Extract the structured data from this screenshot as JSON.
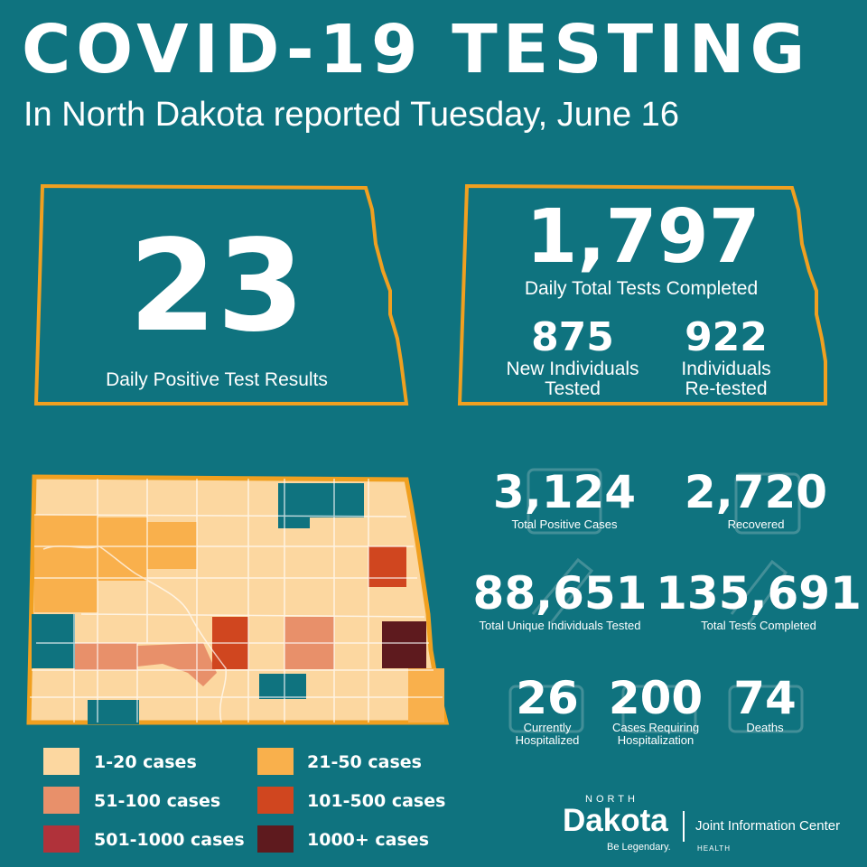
{
  "header": {
    "title": "COVID-19 TESTING",
    "subtitle": "In North Dakota reported Tuesday, June 16"
  },
  "daily_positive": {
    "value": "23",
    "label": "Daily Positive Test Results"
  },
  "daily_tests": {
    "value": "1,797",
    "label": "Daily Total Tests Completed",
    "new_individuals": {
      "value": "875",
      "label_line1": "New Individuals",
      "label_line2": "Tested"
    },
    "retested": {
      "value": "922",
      "label_line1": "Individuals",
      "label_line2": "Re-tested"
    }
  },
  "stats": {
    "total_positive": {
      "value": "3,124",
      "label": "Total Positive Cases"
    },
    "recovered": {
      "value": "2,720",
      "label": "Recovered"
    },
    "unique_tested": {
      "value": "88,651",
      "label": "Total Unique Individuals Tested"
    },
    "total_tests": {
      "value": "135,691",
      "label": "Total Tests Completed"
    },
    "hospitalized": {
      "value": "26",
      "label_line1": "Currently",
      "label_line2": "Hospitalized"
    },
    "cases_hosp": {
      "value": "200",
      "label_line1": "Cases Requiring",
      "label_line2": "Hospitalization"
    },
    "deaths": {
      "value": "74",
      "label": "Deaths"
    }
  },
  "legend": [
    {
      "label": "1-20 cases",
      "color": "#fcd7a0"
    },
    {
      "label": "21-50 cases",
      "color": "#f9b04c"
    },
    {
      "label": "51-100 cases",
      "color": "#e8906a"
    },
    {
      "label": "101-500 cases",
      "color": "#d0461f"
    },
    {
      "label": "501-1000 cases",
      "color": "#b0323a"
    },
    {
      "label": "1000+ cases",
      "color": "#5e1a1e"
    }
  ],
  "colors": {
    "background": "#0f737f",
    "outline": "#f0a020",
    "no_cases": "#0f737f"
  },
  "logo": {
    "north": "NORTH",
    "dakota": "Dakota",
    "tagline": "Be Legendary.",
    "jic": "Joint Information Center",
    "health": "HEALTH"
  }
}
